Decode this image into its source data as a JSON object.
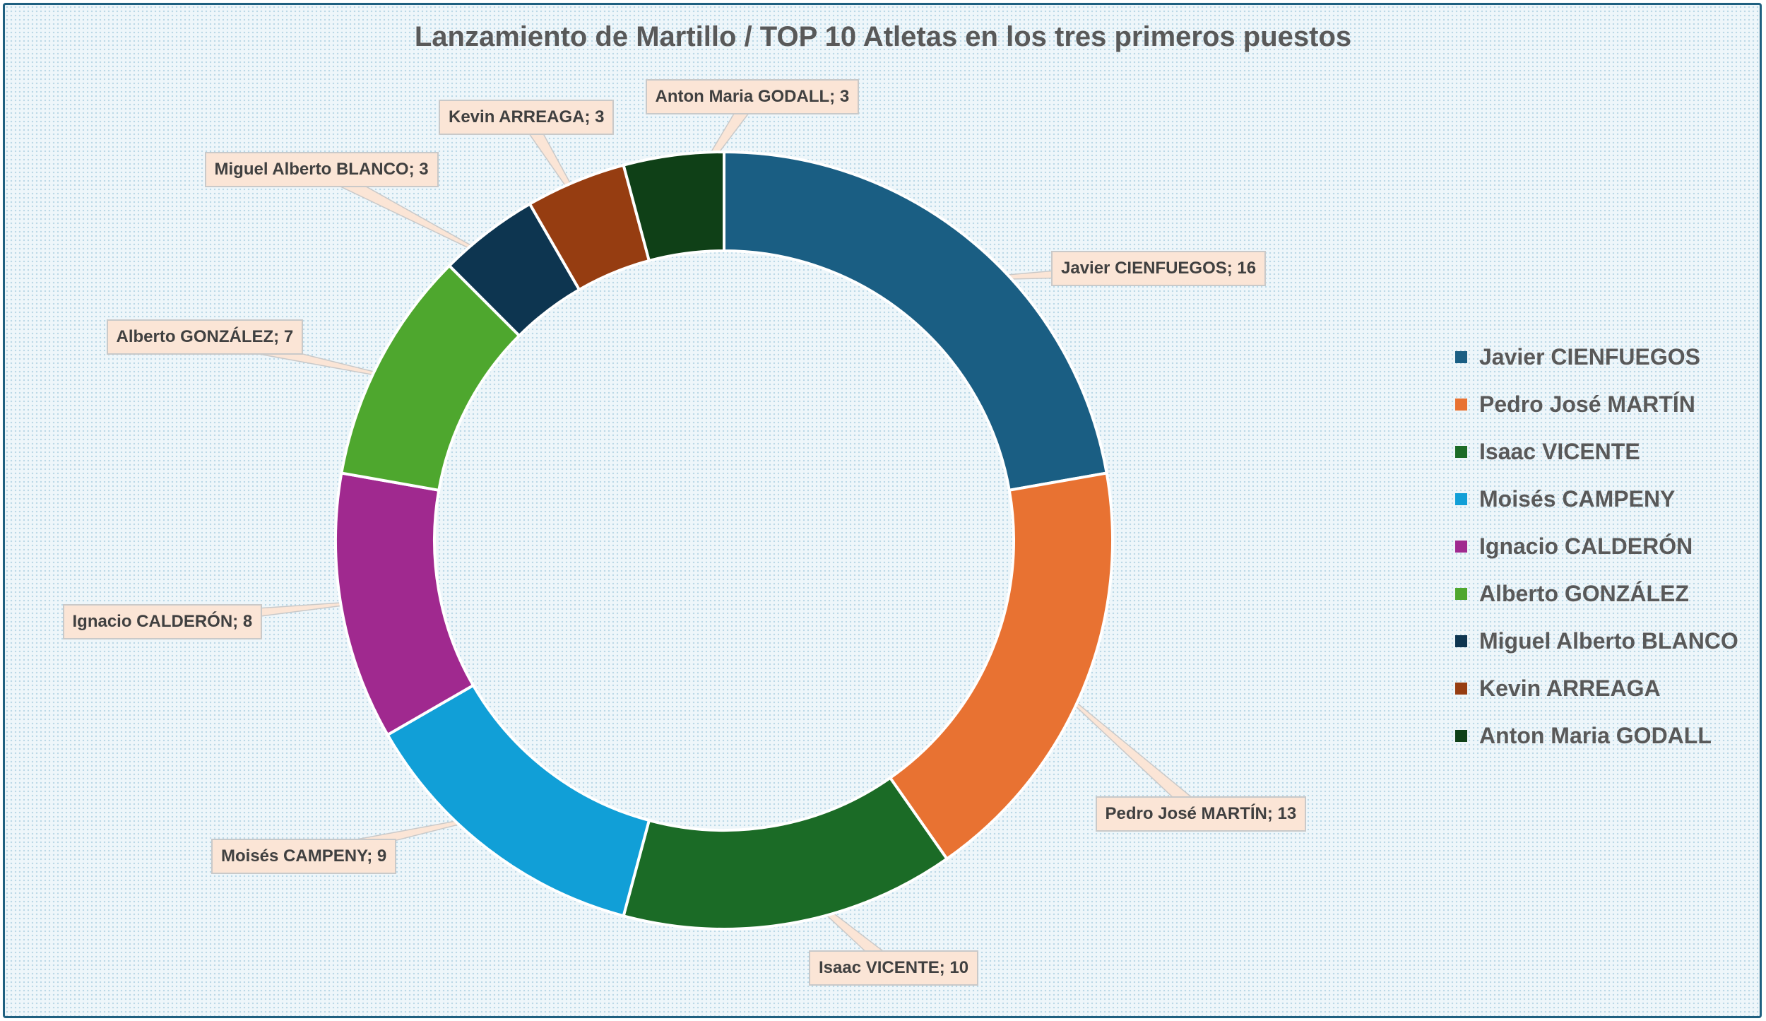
{
  "chart_data": {
    "type": "pie",
    "subtype": "doughnut",
    "title": "Lanzamiento de Martillo / TOP 10 Atletas en los tres primeros puestos",
    "legend_position": "right",
    "categories": [
      "Javier CIENFUEGOS",
      "Pedro José MARTÍN",
      "Isaac VICENTE",
      "Moisés CAMPENY",
      "Ignacio CALDERÓN",
      "Alberto GONZÁLEZ",
      "Miguel Alberto BLANCO",
      "Kevin ARREAGA",
      "Anton Maria GODALL"
    ],
    "values": [
      16,
      13,
      10,
      9,
      8,
      7,
      3,
      3,
      3
    ],
    "data_labels": [
      "Javier CIENFUEGOS; 16",
      "Pedro José MARTÍN; 13",
      "Isaac VICENTE; 10",
      "Moisés CAMPENY; 9",
      "Ignacio CALDERÓN; 8",
      "Alberto GONZÁLEZ; 7",
      "Miguel Alberto BLANCO; 3",
      "Kevin ARREAGA; 3",
      "Anton Maria GODALL; 3"
    ],
    "colors": [
      "#1a5e83",
      "#e87232",
      "#1b6b26",
      "#119fd7",
      "#a0298f",
      "#4ea72e",
      "#0d3550",
      "#963d11",
      "#0f4017"
    ]
  }
}
